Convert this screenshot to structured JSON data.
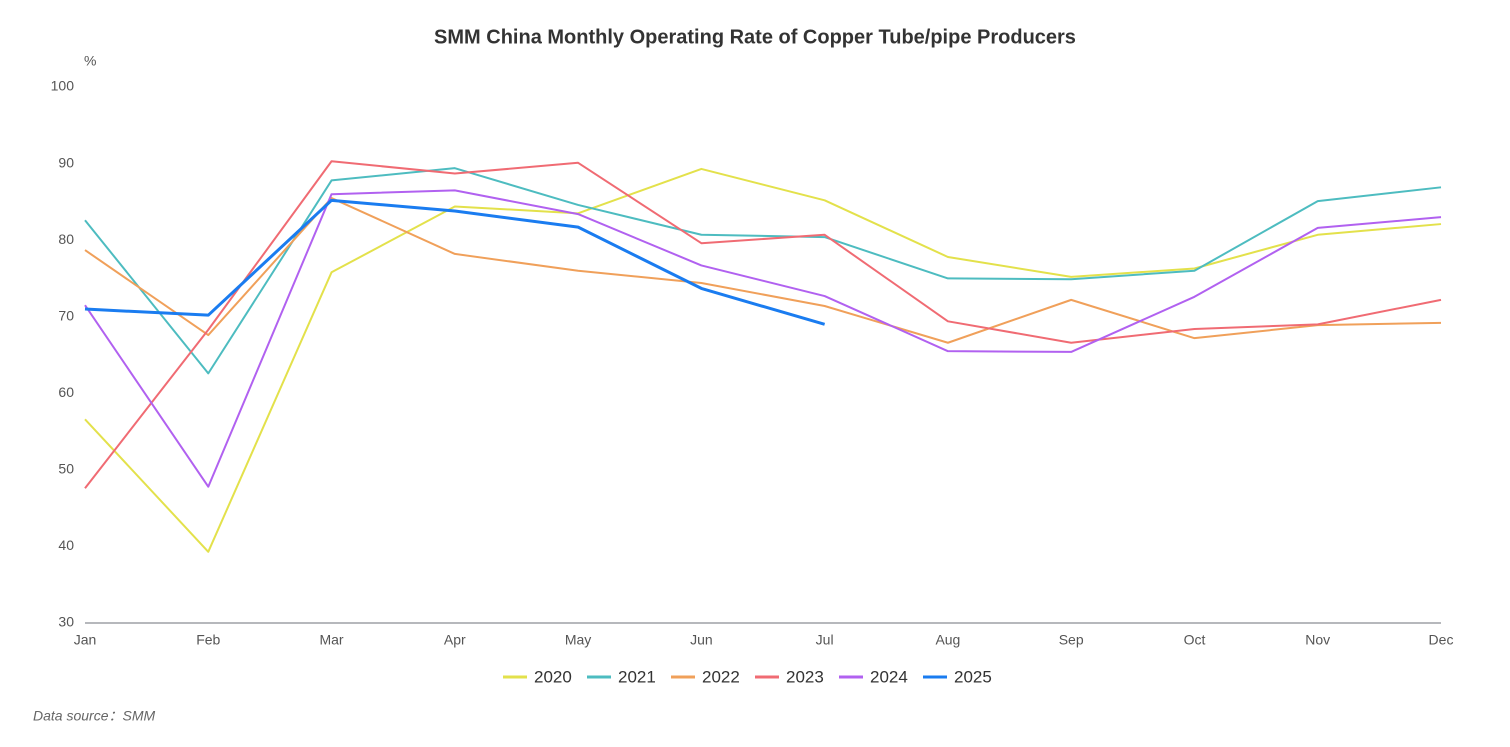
{
  "chart_data": {
    "type": "line",
    "title": "SMM China Monthly Operating Rate of Copper Tube/pipe Producers",
    "y_label": "%",
    "source": "Data source：SMM",
    "categories": [
      "Jan",
      "Feb",
      "Mar",
      "Apr",
      "May",
      "Jun",
      "Jul",
      "Aug",
      "Sep",
      "Oct",
      "Nov",
      "Dec"
    ],
    "ylim": [
      30,
      100
    ],
    "yticks": [
      30,
      40,
      50,
      60,
      70,
      80,
      90,
      100
    ],
    "grid": false,
    "series": [
      {
        "name": "2020",
        "color": "#e3e14b",
        "values": [
          56.6,
          39.3,
          75.8,
          84.4,
          83.5,
          89.3,
          85.2,
          77.8,
          75.2,
          76.3,
          80.7,
          82.1
        ]
      },
      {
        "name": "2021",
        "color": "#4dbcc0",
        "values": [
          82.6,
          62.6,
          87.8,
          89.4,
          84.6,
          80.7,
          80.4,
          75.0,
          74.9,
          76.0,
          85.1,
          86.9
        ]
      },
      {
        "name": "2022",
        "color": "#f0a05a",
        "values": [
          78.7,
          67.6,
          85.5,
          78.2,
          76.0,
          74.4,
          71.4,
          66.6,
          72.2,
          67.2,
          68.9,
          69.2
        ]
      },
      {
        "name": "2023",
        "color": "#f06b73",
        "values": [
          47.6,
          68.3,
          90.3,
          88.7,
          90.1,
          79.6,
          80.7,
          69.4,
          66.6,
          68.4,
          69.0,
          72.2
        ]
      },
      {
        "name": "2024",
        "color": "#b161f0",
        "values": [
          71.5,
          47.8,
          86.0,
          86.5,
          83.4,
          76.7,
          72.7,
          65.5,
          65.4,
          72.6,
          81.6,
          83.0
        ]
      },
      {
        "name": "2025",
        "color": "#1a7cf0",
        "values": [
          71.0,
          70.2,
          85.2,
          83.8,
          81.7,
          73.7,
          69.0,
          null,
          null,
          null,
          null,
          null
        ]
      }
    ]
  }
}
